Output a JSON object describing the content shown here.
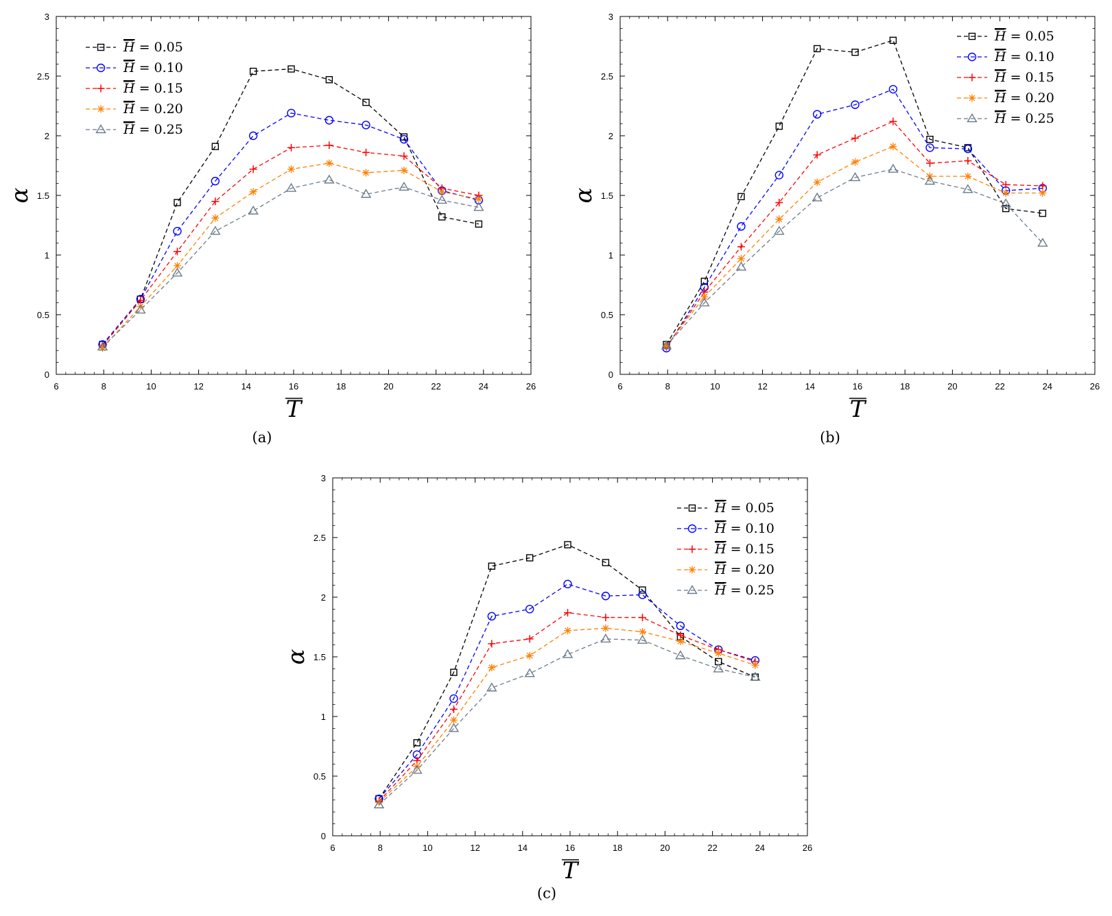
{
  "figure": {
    "ylabel": "α",
    "xlabel": "T",
    "legend_prefix": "H",
    "legend_sep": "= "
  },
  "series_styles": [
    {
      "label": "0.05",
      "color": "#000000",
      "marker": "square"
    },
    {
      "label": "0.10",
      "color": "#0000ff",
      "marker": "circle"
    },
    {
      "label": "0.15",
      "color": "#ff0000",
      "marker": "plus"
    },
    {
      "label": "0.20",
      "color": "#ff8000",
      "marker": "asterisk"
    },
    {
      "label": "0.25",
      "color": "#6a7b8a",
      "marker": "triangle"
    }
  ],
  "chart_data": [
    {
      "type": "line",
      "caption": "(a)",
      "legend": "top-left",
      "xlim": [
        6,
        26
      ],
      "ylim": [
        0,
        3
      ],
      "xticks": [
        6,
        8,
        10,
        12,
        14,
        16,
        18,
        20,
        22,
        24,
        26
      ],
      "yticks": [
        0,
        0.5,
        1,
        1.5,
        2,
        2.5,
        3
      ],
      "ytick_labels": [
        "0",
        "0.5",
        "1",
        "1.5",
        "2",
        "2.5",
        "3"
      ],
      "x": [
        7.95,
        9.55,
        11.1,
        12.7,
        14.3,
        15.9,
        17.5,
        19.05,
        20.65,
        22.25,
        23.8
      ],
      "series": [
        {
          "name": "H = 0.05",
          "values": [
            0.25,
            0.63,
            1.44,
            1.91,
            2.54,
            2.56,
            2.47,
            2.28,
            1.99,
            1.32,
            1.26
          ]
        },
        {
          "name": "H = 0.10",
          "values": [
            0.25,
            0.63,
            1.2,
            1.62,
            2.0,
            2.19,
            2.13,
            2.09,
            1.97,
            1.54,
            1.46
          ]
        },
        {
          "name": "H = 0.15",
          "values": [
            0.24,
            0.62,
            1.03,
            1.45,
            1.72,
            1.9,
            1.92,
            1.86,
            1.83,
            1.56,
            1.5
          ]
        },
        {
          "name": "H = 0.20",
          "values": [
            0.22,
            0.57,
            0.91,
            1.31,
            1.53,
            1.72,
            1.77,
            1.69,
            1.71,
            1.53,
            1.47
          ]
        },
        {
          "name": "H = 0.25",
          "values": [
            0.23,
            0.54,
            0.85,
            1.2,
            1.37,
            1.56,
            1.63,
            1.51,
            1.57,
            1.46,
            1.4
          ]
        }
      ]
    },
    {
      "type": "line",
      "caption": "(b)",
      "legend": "top-right",
      "xlim": [
        6,
        26
      ],
      "ylim": [
        0,
        3
      ],
      "xticks": [
        6,
        8,
        10,
        12,
        14,
        16,
        18,
        20,
        22,
        24,
        26
      ],
      "yticks": [
        0,
        0.5,
        1,
        1.5,
        2,
        2.5,
        3
      ],
      "ytick_labels": [
        "0",
        "0.5",
        "1",
        "1.5",
        "2",
        "2.5",
        "3"
      ],
      "x": [
        7.95,
        9.55,
        11.1,
        12.7,
        14.3,
        15.9,
        17.5,
        19.05,
        20.65,
        22.25,
        23.8
      ],
      "series": [
        {
          "name": "H = 0.05",
          "values": [
            0.25,
            0.78,
            1.49,
            2.08,
            2.73,
            2.7,
            2.8,
            1.97,
            1.9,
            1.39,
            1.35
          ]
        },
        {
          "name": "H = 0.10",
          "values": [
            0.22,
            0.73,
            1.24,
            1.67,
            2.18,
            2.26,
            2.39,
            1.9,
            1.89,
            1.54,
            1.56
          ]
        },
        {
          "name": "H = 0.15",
          "values": [
            0.23,
            0.69,
            1.07,
            1.44,
            1.84,
            1.98,
            2.12,
            1.77,
            1.79,
            1.59,
            1.58
          ]
        },
        {
          "name": "H = 0.20",
          "values": [
            0.24,
            0.65,
            0.97,
            1.3,
            1.61,
            1.78,
            1.91,
            1.66,
            1.66,
            1.52,
            1.52
          ]
        },
        {
          "name": "H = 0.25",
          "values": [
            0.24,
            0.6,
            0.9,
            1.2,
            1.48,
            1.65,
            1.72,
            1.62,
            1.55,
            1.43,
            1.1
          ]
        }
      ]
    },
    {
      "type": "line",
      "caption": "(c)",
      "legend": "top-right",
      "xlim": [
        6,
        26
      ],
      "ylim": [
        0,
        3
      ],
      "xticks": [
        6,
        8,
        10,
        12,
        14,
        16,
        18,
        20,
        22,
        24,
        26
      ],
      "yticks": [
        0,
        0.5,
        1,
        1.5,
        2,
        2.5,
        3
      ],
      "ytick_labels": [
        "0",
        "0.5",
        "1",
        "1.5",
        "2",
        "2.5",
        "3"
      ],
      "x": [
        7.95,
        9.55,
        11.1,
        12.7,
        14.3,
        15.9,
        17.5,
        19.05,
        20.65,
        22.25,
        23.8
      ],
      "series": [
        {
          "name": "H = 0.05",
          "values": [
            0.31,
            0.78,
            1.37,
            2.26,
            2.33,
            2.44,
            2.29,
            2.06,
            1.67,
            1.46,
            1.33
          ]
        },
        {
          "name": "H = 0.10",
          "values": [
            0.31,
            0.68,
            1.15,
            1.84,
            1.9,
            2.11,
            2.01,
            2.02,
            1.76,
            1.56,
            1.47
          ]
        },
        {
          "name": "H = 0.15",
          "values": [
            0.29,
            0.63,
            1.06,
            1.61,
            1.65,
            1.87,
            1.83,
            1.83,
            1.68,
            1.56,
            1.46
          ]
        },
        {
          "name": "H = 0.20",
          "values": [
            0.28,
            0.58,
            0.97,
            1.41,
            1.51,
            1.72,
            1.74,
            1.71,
            1.63,
            1.53,
            1.43
          ]
        },
        {
          "name": "H = 0.25",
          "values": [
            0.26,
            0.55,
            0.9,
            1.24,
            1.36,
            1.52,
            1.65,
            1.64,
            1.51,
            1.4,
            1.33
          ]
        }
      ]
    }
  ]
}
